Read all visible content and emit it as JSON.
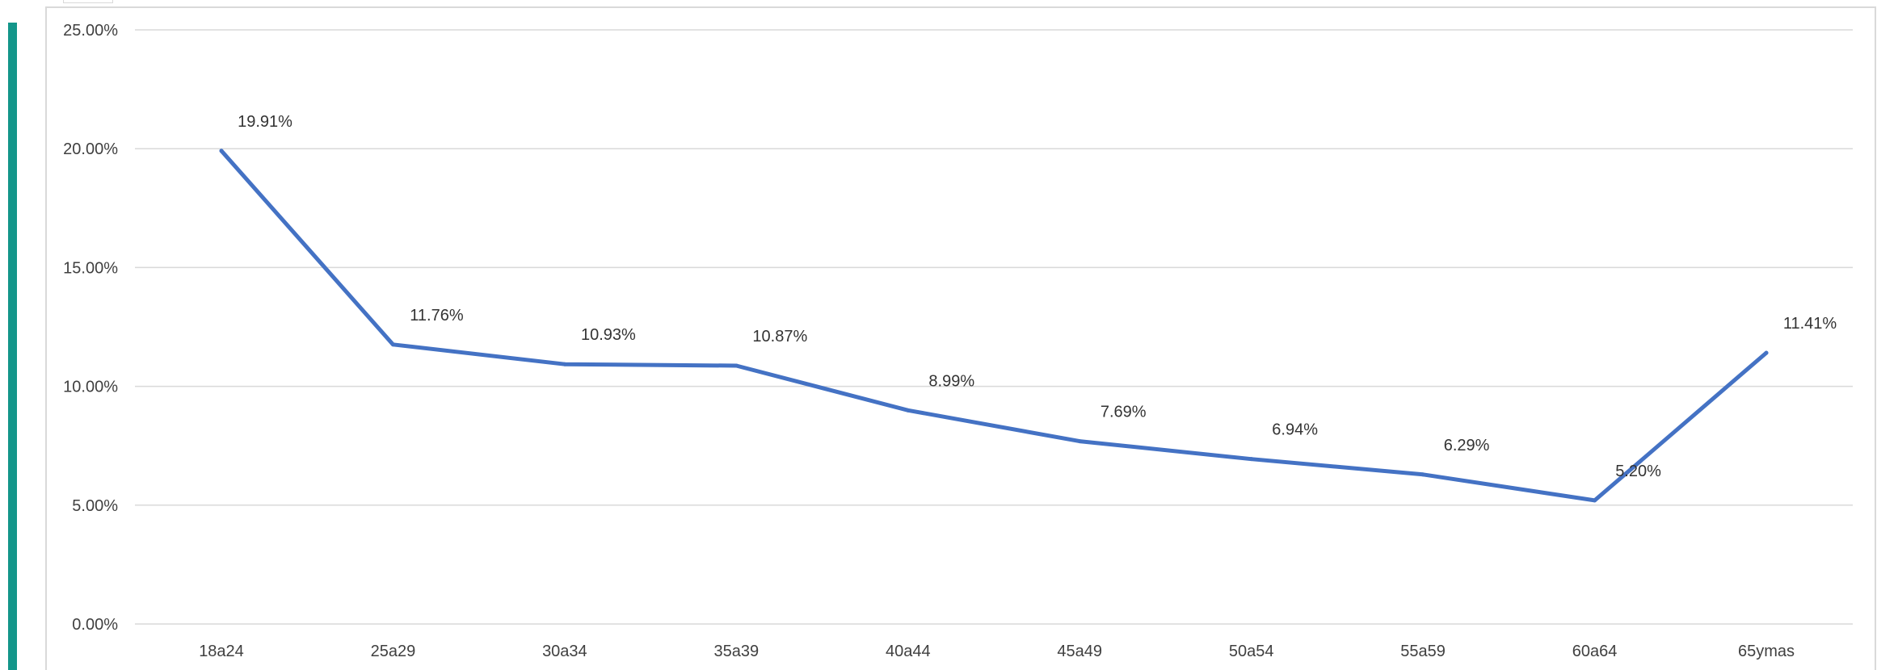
{
  "colors": {
    "accent": "#13968a",
    "line": "#4472c4",
    "grid": "#d9d9d9"
  },
  "chart_data": {
    "type": "line",
    "title": "",
    "xlabel": "",
    "ylabel": "",
    "categories": [
      "18a24",
      "25a29",
      "30a34",
      "35a39",
      "40a44",
      "45a49",
      "50a54",
      "55a59",
      "60a64",
      "65ymas"
    ],
    "series": [
      {
        "values": [
          19.91,
          11.76,
          10.93,
          10.87,
          8.99,
          7.69,
          6.94,
          6.29,
          5.2,
          11.41
        ],
        "data_labels": [
          "19.91%",
          "11.76%",
          "10.93%",
          "10.87%",
          "8.99%",
          "7.69%",
          "6.94%",
          "6.29%",
          "5.20%",
          "11.41%"
        ]
      }
    ],
    "ylim": [
      0,
      25
    ],
    "y_ticks": [
      0,
      5,
      10,
      15,
      20,
      25
    ],
    "y_tick_labels": [
      "0.00%",
      "5.00%",
      "10.00%",
      "15.00%",
      "20.00%",
      "25.00%"
    ],
    "grid": "horizontal",
    "legend": "none"
  }
}
